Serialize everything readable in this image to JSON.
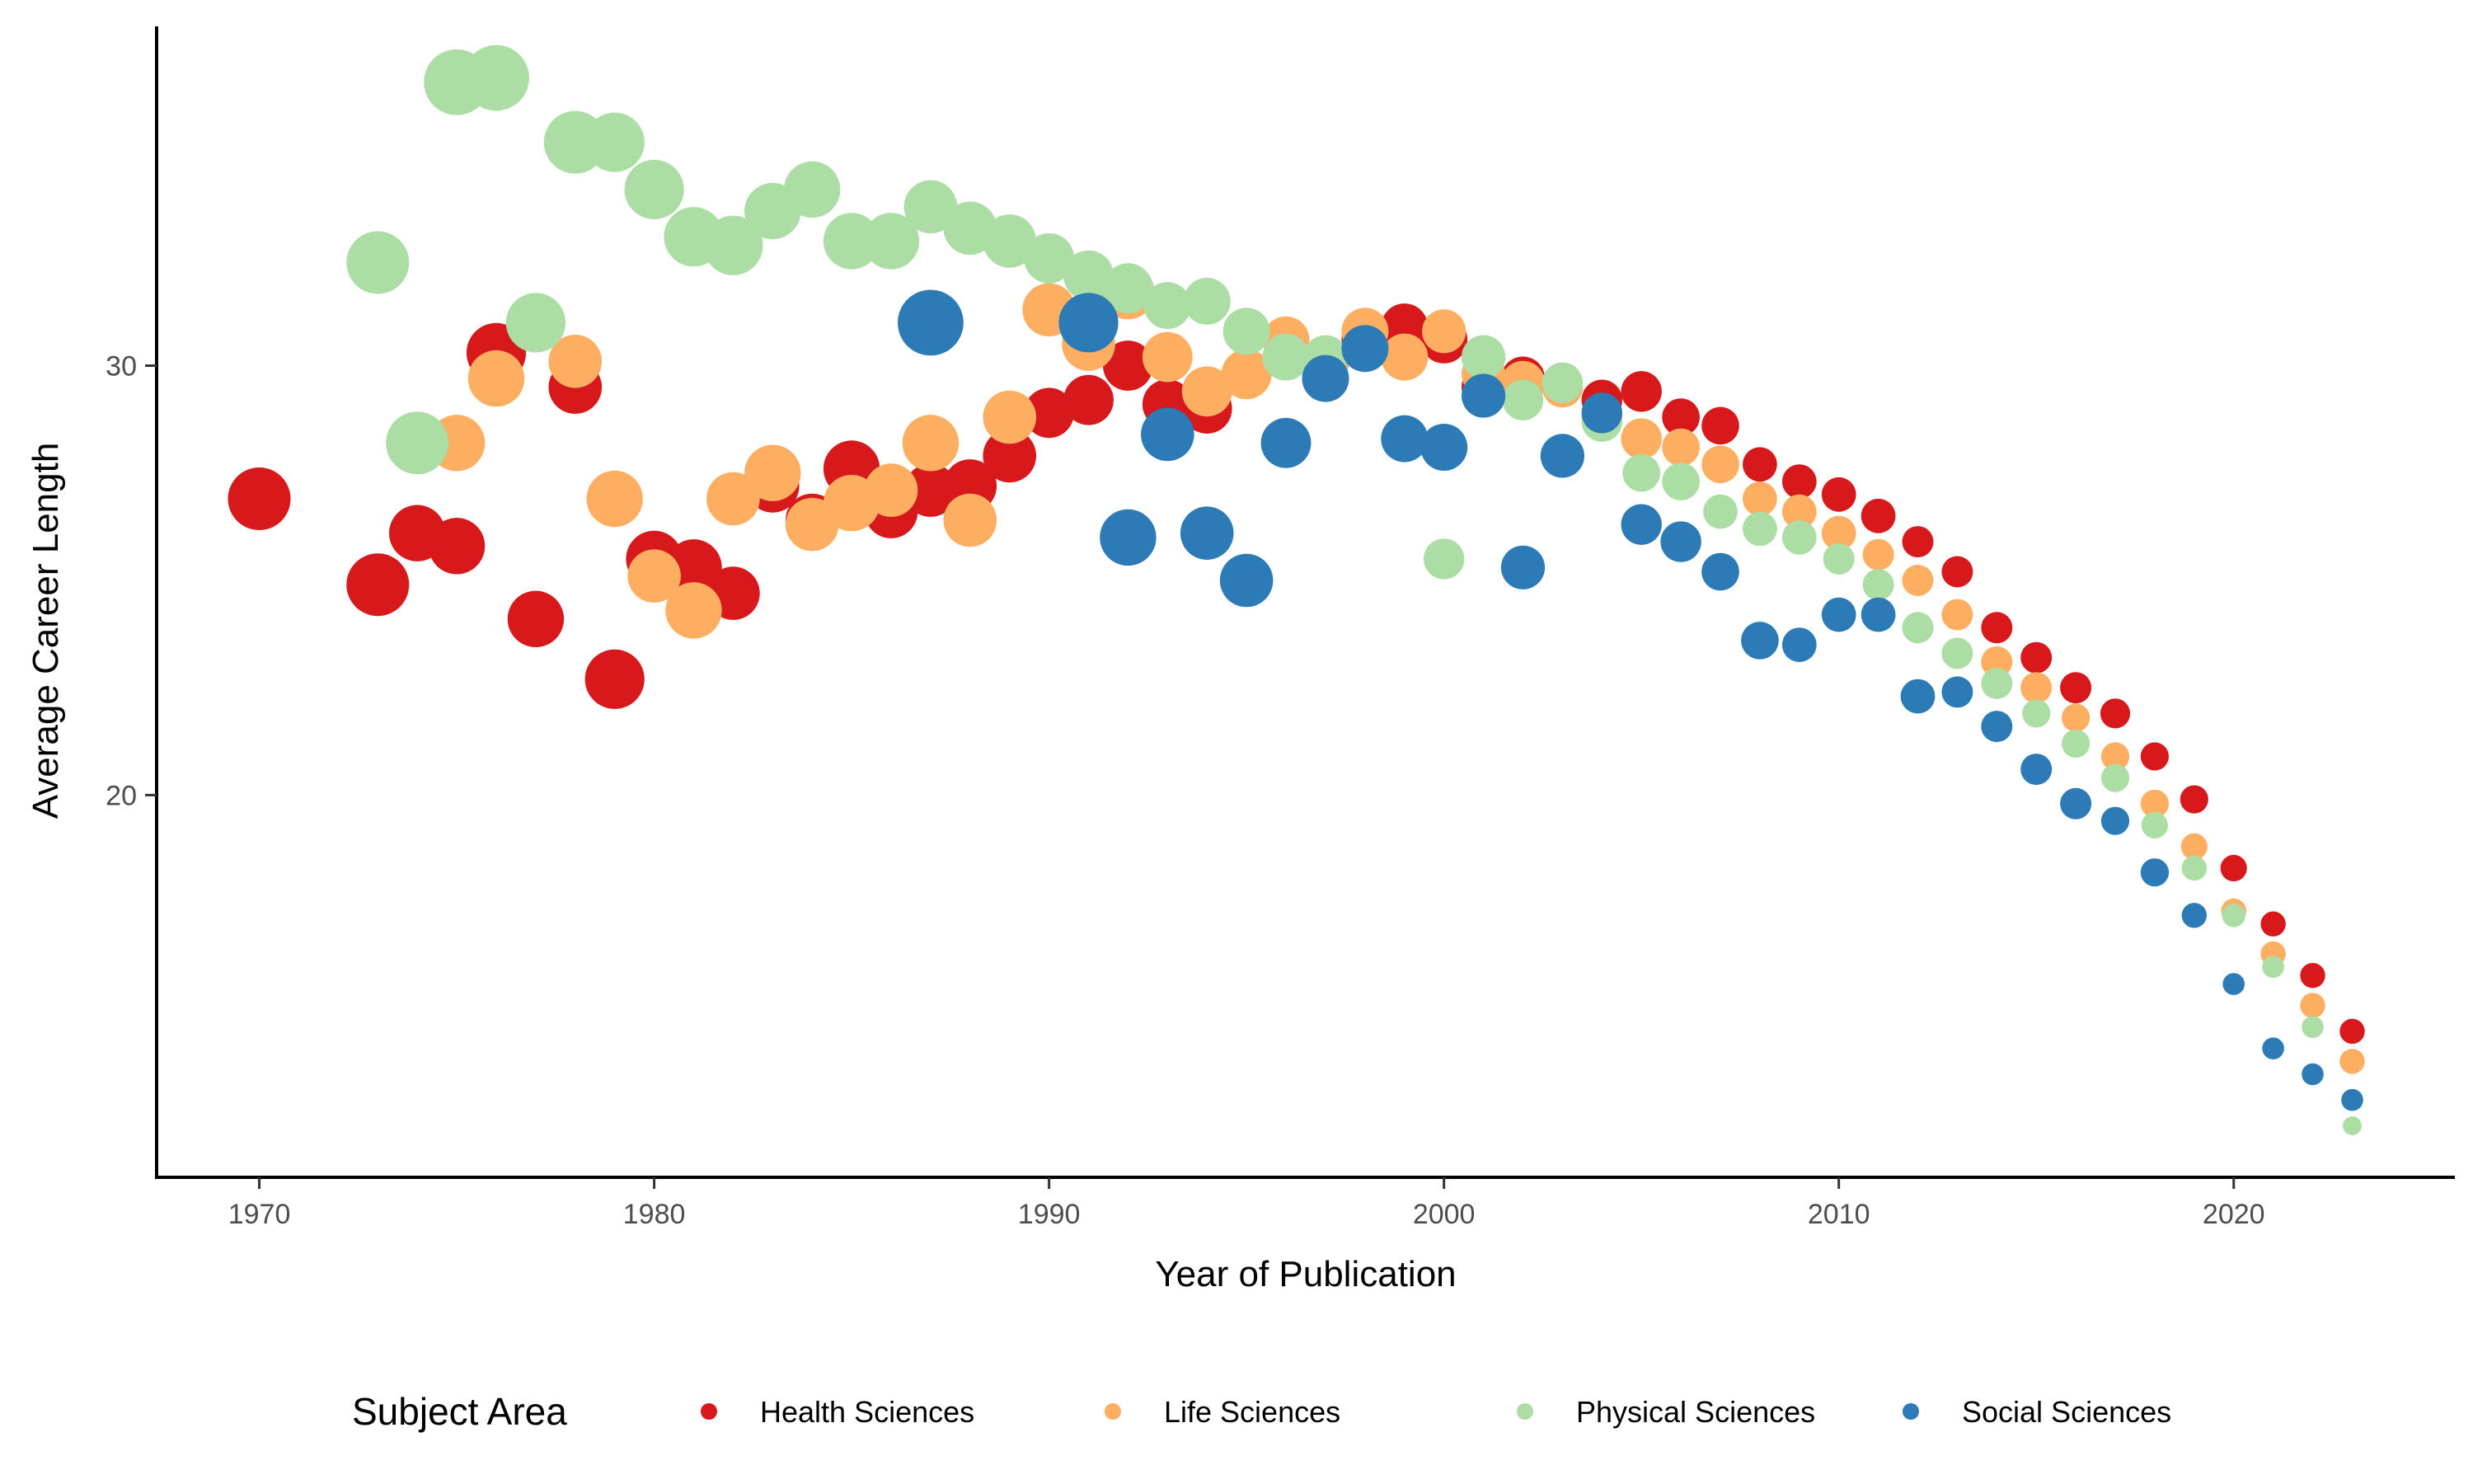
{
  "chart_data": {
    "type": "scatter",
    "title": "",
    "xlabel": "Year of Publication",
    "ylabel": "Average Career Length",
    "xlim": [
      1967.4,
      2025.6
    ],
    "ylim": [
      11.1,
      37.9
    ],
    "x_ticks": [
      1970,
      1980,
      1990,
      2000,
      2010,
      2020
    ],
    "y_ticks": [
      20,
      30
    ],
    "grid": false,
    "legend": {
      "title": "Subject Area",
      "position": "bottom"
    },
    "point_size_encoding": "size reflects a variable not shown in legend (larger for earlier years)",
    "series": [
      {
        "name": "Health Sciences",
        "color": "#D7191C",
        "points": [
          [
            1970,
            26.9
          ],
          [
            1973,
            24.9
          ],
          [
            1974,
            26.1
          ],
          [
            1975,
            25.8
          ],
          [
            1976,
            30.3
          ],
          [
            1977,
            24.1
          ],
          [
            1978,
            29.5
          ],
          [
            1979,
            22.7
          ],
          [
            1980,
            25.5
          ],
          [
            1981,
            25.3
          ],
          [
            1982,
            24.7
          ],
          [
            1983,
            27.2
          ],
          [
            1984,
            26.4
          ],
          [
            1985,
            27.6
          ],
          [
            1986,
            26.6
          ],
          [
            1987,
            27.1
          ],
          [
            1988,
            27.2
          ],
          [
            1989,
            27.9
          ],
          [
            1990,
            28.9
          ],
          [
            1991,
            29.2
          ],
          [
            1992,
            30.0
          ],
          [
            1993,
            29.1
          ],
          [
            1994,
            29.0
          ],
          [
            1997,
            30.1
          ],
          [
            1998,
            30.6
          ],
          [
            1999,
            30.9
          ],
          [
            2000,
            30.6
          ],
          [
            2001,
            29.5
          ],
          [
            2002,
            29.7
          ],
          [
            2004,
            29.2
          ],
          [
            2005,
            29.4
          ],
          [
            2006,
            28.8
          ],
          [
            2007,
            28.6
          ],
          [
            2008,
            27.7
          ],
          [
            2009,
            27.3
          ],
          [
            2010,
            27.0
          ],
          [
            2011,
            26.5
          ],
          [
            2012,
            25.9
          ],
          [
            2013,
            25.2
          ],
          [
            2014,
            23.9
          ],
          [
            2015,
            23.2
          ],
          [
            2016,
            22.5
          ],
          [
            2017,
            21.9
          ],
          [
            2018,
            20.9
          ],
          [
            2019,
            19.9
          ],
          [
            2020,
            18.3
          ],
          [
            2021,
            17.0
          ],
          [
            2022,
            15.8
          ],
          [
            2023,
            14.5
          ]
        ],
        "sizes": [
          40,
          40,
          36,
          36,
          38,
          36,
          34,
          38,
          36,
          36,
          34,
          34,
          34,
          36,
          34,
          34,
          34,
          34,
          32,
          32,
          32,
          32,
          32,
          30,
          30,
          30,
          30,
          28,
          28,
          26,
          26,
          24,
          24,
          22,
          22,
          22,
          22,
          20,
          20,
          20,
          20,
          20,
          19,
          18,
          18,
          17,
          16,
          16,
          16
        ]
      },
      {
        "name": "Life Sciences",
        "color": "#FDAE61",
        "points": [
          [
            1975,
            28.2
          ],
          [
            1976,
            29.7
          ],
          [
            1978,
            30.1
          ],
          [
            1979,
            26.9
          ],
          [
            1980,
            25.1
          ],
          [
            1981,
            24.3
          ],
          [
            1982,
            26.9
          ],
          [
            1983,
            27.5
          ],
          [
            1984,
            26.3
          ],
          [
            1985,
            26.8
          ],
          [
            1986,
            27.1
          ],
          [
            1987,
            28.2
          ],
          [
            1988,
            26.4
          ],
          [
            1989,
            28.8
          ],
          [
            1990,
            31.3
          ],
          [
            1991,
            30.5
          ],
          [
            1992,
            31.7
          ],
          [
            1993,
            30.2
          ],
          [
            1994,
            29.4
          ],
          [
            1995,
            29.8
          ],
          [
            1996,
            30.6
          ],
          [
            1997,
            30.1
          ],
          [
            1998,
            30.8
          ],
          [
            1999,
            30.2
          ],
          [
            2000,
            30.8
          ],
          [
            2001,
            29.8
          ],
          [
            2002,
            29.6
          ],
          [
            2003,
            29.5
          ],
          [
            2004,
            28.8
          ],
          [
            2005,
            28.3
          ],
          [
            2006,
            28.1
          ],
          [
            2007,
            27.7
          ],
          [
            2008,
            26.9
          ],
          [
            2009,
            26.6
          ],
          [
            2010,
            26.1
          ],
          [
            2011,
            25.6
          ],
          [
            2012,
            25.0
          ],
          [
            2013,
            24.2
          ],
          [
            2014,
            23.1
          ],
          [
            2015,
            22.5
          ],
          [
            2016,
            21.8
          ],
          [
            2017,
            20.9
          ],
          [
            2018,
            19.8
          ],
          [
            2019,
            18.8
          ],
          [
            2020,
            17.3
          ],
          [
            2021,
            16.3
          ],
          [
            2022,
            15.1
          ],
          [
            2023,
            13.8
          ]
        ],
        "sizes": [
          36,
          36,
          34,
          36,
          34,
          36,
          34,
          36,
          34,
          36,
          34,
          36,
          34,
          34,
          34,
          34,
          34,
          32,
          32,
          32,
          30,
          30,
          30,
          30,
          28,
          28,
          28,
          26,
          26,
          26,
          24,
          24,
          22,
          22,
          22,
          20,
          20,
          20,
          20,
          20,
          18,
          18,
          18,
          17,
          16,
          16,
          16,
          16
        ]
      },
      {
        "name": "Physical Sciences",
        "color": "#ABDDA4",
        "points": [
          [
            1973,
            32.4
          ],
          [
            1974,
            28.2
          ],
          [
            1975,
            36.6
          ],
          [
            1976,
            36.7
          ],
          [
            1977,
            31.0
          ],
          [
            1978,
            35.2
          ],
          [
            1979,
            35.2
          ],
          [
            1980,
            34.1
          ],
          [
            1981,
            33.0
          ],
          [
            1982,
            32.8
          ],
          [
            1983,
            33.6
          ],
          [
            1984,
            34.1
          ],
          [
            1985,
            32.9
          ],
          [
            1986,
            32.9
          ],
          [
            1987,
            33.7
          ],
          [
            1988,
            33.2
          ],
          [
            1989,
            32.9
          ],
          [
            1990,
            32.5
          ],
          [
            1991,
            32.1
          ],
          [
            1992,
            31.8
          ],
          [
            1993,
            31.4
          ],
          [
            1994,
            31.5
          ],
          [
            1995,
            30.8
          ],
          [
            1996,
            30.2
          ],
          [
            1997,
            30.2
          ],
          [
            2000,
            25.5
          ],
          [
            2001,
            30.2
          ],
          [
            2002,
            29.2
          ],
          [
            2003,
            29.6
          ],
          [
            2004,
            28.7
          ],
          [
            2005,
            27.5
          ],
          [
            2006,
            27.3
          ],
          [
            2007,
            26.6
          ],
          [
            2008,
            26.2
          ],
          [
            2009,
            26.0
          ],
          [
            2010,
            25.5
          ],
          [
            2011,
            24.9
          ],
          [
            2012,
            23.9
          ],
          [
            2013,
            23.3
          ],
          [
            2014,
            22.6
          ],
          [
            2015,
            21.9
          ],
          [
            2016,
            21.2
          ],
          [
            2017,
            20.4
          ],
          [
            2018,
            19.3
          ],
          [
            2019,
            18.3
          ],
          [
            2020,
            17.2
          ],
          [
            2021,
            16.0
          ],
          [
            2022,
            14.6
          ],
          [
            2023,
            12.3
          ]
        ],
        "sizes": [
          40,
          40,
          42,
          42,
          38,
          40,
          38,
          38,
          38,
          38,
          36,
          36,
          36,
          36,
          34,
          34,
          34,
          32,
          32,
          32,
          30,
          30,
          30,
          30,
          28,
          26,
          28,
          26,
          26,
          26,
          24,
          24,
          22,
          22,
          22,
          20,
          20,
          20,
          20,
          20,
          18,
          18,
          18,
          17,
          16,
          15,
          14,
          14,
          12
        ]
      },
      {
        "name": "Social Sciences",
        "color": "#2C7BB6",
        "points": [
          [
            1987,
            31.0
          ],
          [
            1991,
            31.0
          ],
          [
            1992,
            26.0
          ],
          [
            1993,
            28.4
          ],
          [
            1994,
            26.1
          ],
          [
            1995,
            25.0
          ],
          [
            1996,
            28.2
          ],
          [
            1997,
            29.7
          ],
          [
            1998,
            30.4
          ],
          [
            1999,
            28.3
          ],
          [
            2000,
            28.1
          ],
          [
            2001,
            29.3
          ],
          [
            2002,
            25.3
          ],
          [
            2003,
            27.9
          ],
          [
            2004,
            28.9
          ],
          [
            2005,
            26.3
          ],
          [
            2006,
            25.9
          ],
          [
            2007,
            25.2
          ],
          [
            2008,
            23.6
          ],
          [
            2009,
            23.5
          ],
          [
            2010,
            24.2
          ],
          [
            2011,
            24.2
          ],
          [
            2012,
            22.3
          ],
          [
            2013,
            22.4
          ],
          [
            2014,
            21.6
          ],
          [
            2015,
            20.6
          ],
          [
            2016,
            19.8
          ],
          [
            2017,
            19.4
          ],
          [
            2018,
            18.2
          ],
          [
            2019,
            17.2
          ],
          [
            2020,
            15.6
          ],
          [
            2021,
            14.1
          ],
          [
            2022,
            13.5
          ],
          [
            2023,
            12.9
          ]
        ],
        "sizes": [
          42,
          38,
          36,
          34,
          34,
          34,
          32,
          30,
          30,
          30,
          30,
          28,
          28,
          28,
          26,
          26,
          26,
          24,
          24,
          22,
          22,
          22,
          22,
          20,
          20,
          20,
          20,
          18,
          18,
          16,
          14,
          14,
          14,
          14
        ]
      }
    ]
  }
}
